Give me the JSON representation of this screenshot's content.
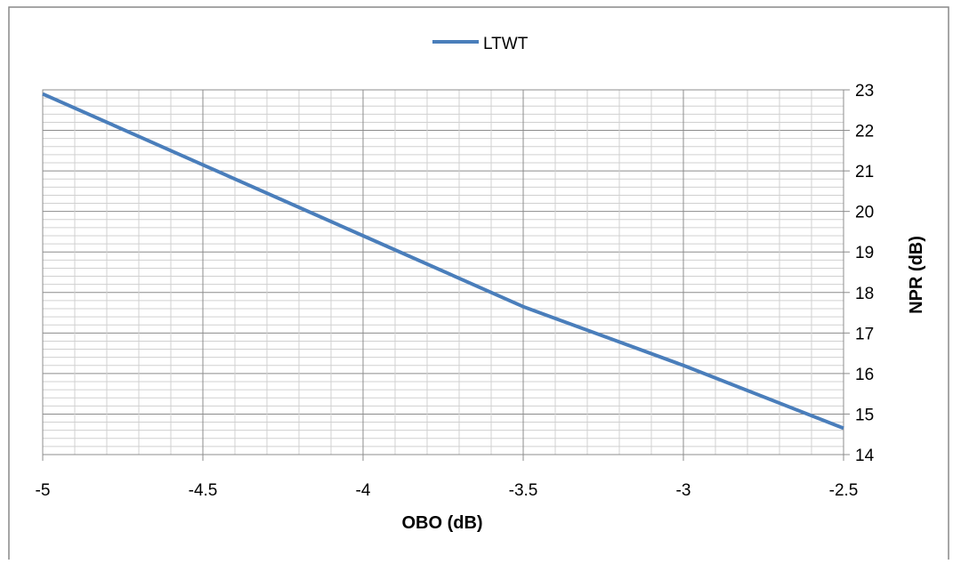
{
  "chart_data": {
    "type": "line",
    "title": "",
    "xlabel": "OBO (dB)",
    "ylabel": "NPR (dB)",
    "xlim": [
      -5,
      -2.5
    ],
    "ylim": [
      14,
      23
    ],
    "x_ticks": [
      "-5",
      "-4.5",
      "-4",
      "-3.5",
      "-3",
      "-2.5"
    ],
    "y_ticks": [
      "14",
      "15",
      "16",
      "17",
      "18",
      "19",
      "20",
      "21",
      "22",
      "23"
    ],
    "y_axis_side": "right",
    "grid": true,
    "legend": "top-center",
    "series": [
      {
        "name": "LTWT",
        "color": "#4a7ebb",
        "x": [
          -5,
          -4.5,
          -4,
          -3.5,
          -3,
          -2.5
        ],
        "y": [
          22.9,
          21.15,
          19.4,
          17.65,
          16.2,
          14.65
        ]
      }
    ]
  }
}
